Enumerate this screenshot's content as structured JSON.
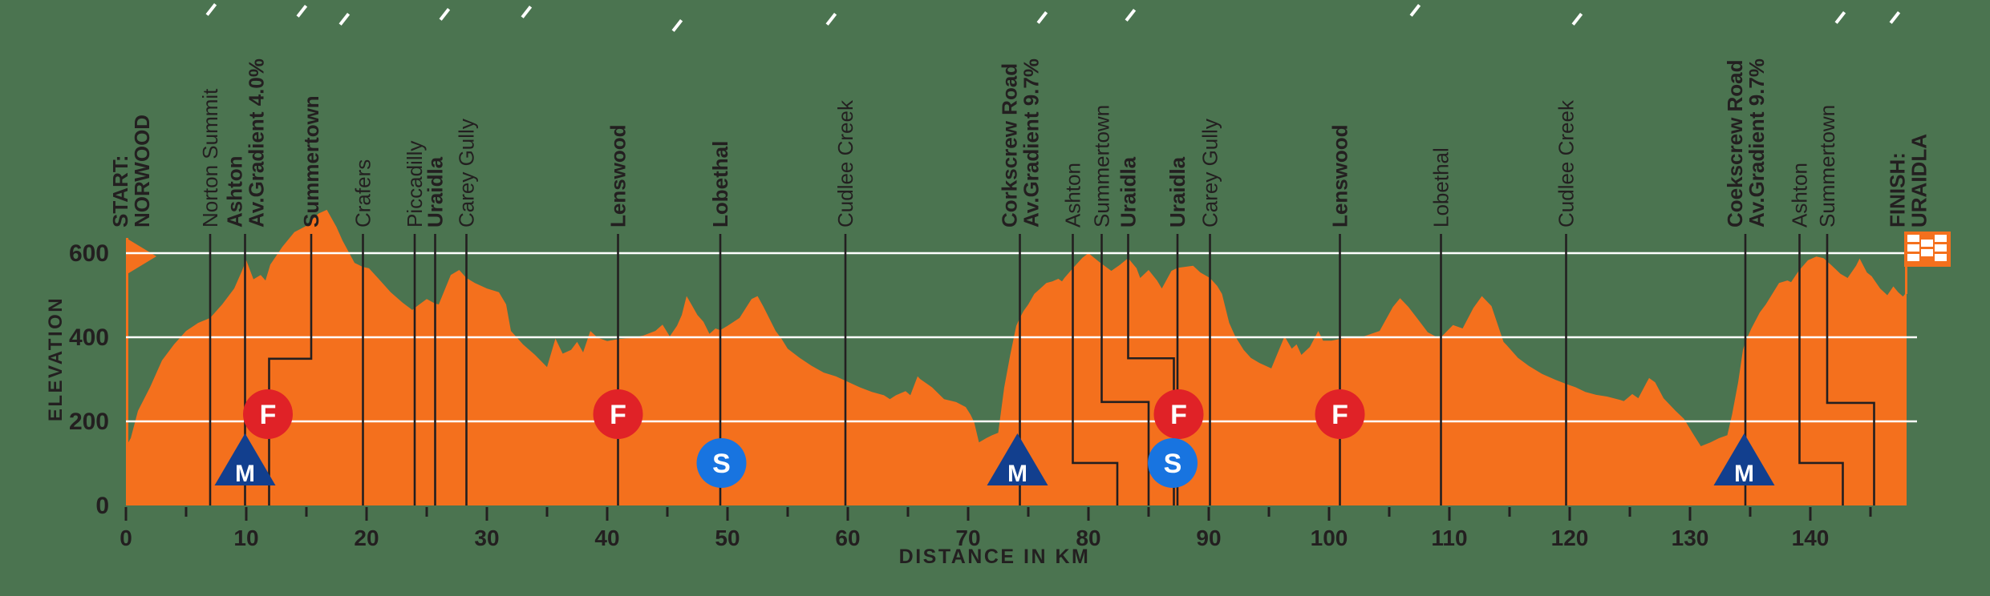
{
  "chart_data": {
    "type": "area",
    "xlabel": "DISTANCE IN KM",
    "ylabel": "ELEVATION",
    "xlim": [
      0,
      148
    ],
    "ylim": [
      0,
      720
    ],
    "x_ticks_major": [
      0,
      10,
      20,
      30,
      40,
      50,
      60,
      70,
      80,
      90,
      100,
      110,
      120,
      130,
      140
    ],
    "x_ticks_minor": [
      5,
      15,
      25,
      35,
      45,
      55,
      65,
      75,
      85,
      95,
      105,
      115,
      125,
      135,
      145
    ],
    "y_ticks": [
      0,
      200,
      400,
      600
    ],
    "grid": "horizontal white lines at 200, 400, 600",
    "legend_position": "none",
    "colors": {
      "profile": "#F4701D",
      "background": "#4B7450",
      "ink": "#231f20",
      "gridline": "#FFFFFF",
      "kom": "#123F8E",
      "feed": "#E02227",
      "sprint": "#1874E0",
      "marker_letter": "#FFFFFF"
    },
    "profile_km_elevation": [
      [
        0,
        140
      ],
      [
        0.4,
        160
      ],
      [
        1,
        225
      ],
      [
        2,
        281
      ],
      [
        3,
        345
      ],
      [
        4,
        383
      ],
      [
        5,
        415
      ],
      [
        6,
        434
      ],
      [
        7,
        446
      ],
      [
        8,
        478
      ],
      [
        9,
        516
      ],
      [
        9.6,
        555
      ],
      [
        10,
        583
      ],
      [
        10.6,
        538
      ],
      [
        11.2,
        548
      ],
      [
        11.6,
        535
      ],
      [
        12,
        573
      ],
      [
        13,
        615
      ],
      [
        14,
        650
      ],
      [
        15,
        665
      ],
      [
        16,
        694
      ],
      [
        16.7,
        703
      ],
      [
        17.5,
        662
      ],
      [
        18,
        630
      ],
      [
        19,
        577
      ],
      [
        19.7,
        567
      ],
      [
        20.2,
        564
      ],
      [
        21,
        539
      ],
      [
        22,
        507
      ],
      [
        23,
        482
      ],
      [
        23.8,
        465
      ],
      [
        24.2,
        474
      ],
      [
        25,
        491
      ],
      [
        25.7,
        480
      ],
      [
        26,
        478
      ],
      [
        27,
        548
      ],
      [
        27.7,
        560
      ],
      [
        28.3,
        541
      ],
      [
        29,
        529
      ],
      [
        30,
        516
      ],
      [
        31,
        507
      ],
      [
        31.6,
        478
      ],
      [
        32,
        415
      ],
      [
        33,
        383
      ],
      [
        34,
        358
      ],
      [
        35,
        329
      ],
      [
        35.7,
        397
      ],
      [
        36.3,
        361
      ],
      [
        37,
        370
      ],
      [
        37.5,
        389
      ],
      [
        38,
        364
      ],
      [
        38.6,
        415
      ],
      [
        39.2,
        399
      ],
      [
        40,
        391
      ],
      [
        41,
        396
      ],
      [
        42,
        398
      ],
      [
        43,
        404
      ],
      [
        44,
        415
      ],
      [
        44.6,
        430
      ],
      [
        45.2,
        402
      ],
      [
        45.8,
        427
      ],
      [
        46.2,
        453
      ],
      [
        46.6,
        498
      ],
      [
        47,
        478
      ],
      [
        47.5,
        453
      ],
      [
        48,
        437
      ],
      [
        48.5,
        408
      ],
      [
        49,
        421
      ],
      [
        49.4,
        417
      ],
      [
        50,
        427
      ],
      [
        51,
        446
      ],
      [
        52,
        491
      ],
      [
        52.5,
        498
      ],
      [
        53,
        472
      ],
      [
        54,
        415
      ],
      [
        54.5,
        396
      ],
      [
        55,
        373
      ],
      [
        56,
        351
      ],
      [
        57,
        332
      ],
      [
        58,
        316
      ],
      [
        59,
        307
      ],
      [
        60,
        294
      ],
      [
        61,
        281
      ],
      [
        62,
        270
      ],
      [
        63,
        262
      ],
      [
        63.5,
        253
      ],
      [
        64,
        262
      ],
      [
        64.8,
        272
      ],
      [
        65.2,
        262
      ],
      [
        65.8,
        307
      ],
      [
        66,
        301
      ],
      [
        67,
        281
      ],
      [
        68,
        253
      ],
      [
        69,
        246
      ],
      [
        69.8,
        234
      ],
      [
        70.2,
        216
      ],
      [
        70.5,
        198
      ],
      [
        70.9,
        150
      ],
      [
        71.5,
        160
      ],
      [
        72,
        167
      ],
      [
        72.5,
        173
      ],
      [
        73,
        281
      ],
      [
        73.5,
        358
      ],
      [
        74,
        427
      ],
      [
        74.3,
        446
      ],
      [
        74.6,
        462
      ],
      [
        75,
        478
      ],
      [
        75.5,
        503
      ],
      [
        76,
        516
      ],
      [
        76.5,
        529
      ],
      [
        77,
        533
      ],
      [
        77.5,
        539
      ],
      [
        77.8,
        533
      ],
      [
        78,
        541
      ],
      [
        78.7,
        564
      ],
      [
        79.5,
        589
      ],
      [
        80,
        600
      ],
      [
        80.9,
        579
      ],
      [
        81.9,
        558
      ],
      [
        82.6,
        572
      ],
      [
        83.3,
        588
      ],
      [
        84,
        564
      ],
      [
        84.3,
        541
      ],
      [
        85,
        560
      ],
      [
        85.7,
        535
      ],
      [
        86.1,
        516
      ],
      [
        86.9,
        558
      ],
      [
        87.4,
        565
      ],
      [
        88.7,
        570
      ],
      [
        89.3,
        554
      ],
      [
        90.1,
        541
      ],
      [
        90.7,
        522
      ],
      [
        91.1,
        503
      ],
      [
        91.7,
        434
      ],
      [
        92.2,
        402
      ],
      [
        92.9,
        370
      ],
      [
        93.5,
        351
      ],
      [
        94.2,
        339
      ],
      [
        95.2,
        326
      ],
      [
        96.3,
        402
      ],
      [
        96.9,
        373
      ],
      [
        97.3,
        383
      ],
      [
        97.7,
        358
      ],
      [
        98.4,
        377
      ],
      [
        99.1,
        415
      ],
      [
        99.5,
        392
      ],
      [
        100.2,
        392
      ],
      [
        100.9,
        396
      ],
      [
        101.5,
        398
      ],
      [
        102.9,
        402
      ],
      [
        103.5,
        408
      ],
      [
        104.2,
        415
      ],
      [
        105.3,
        472
      ],
      [
        105.9,
        493
      ],
      [
        106.6,
        472
      ],
      [
        107.3,
        446
      ],
      [
        108.2,
        412
      ],
      [
        109.1,
        398
      ],
      [
        109.3,
        400
      ],
      [
        110.3,
        429
      ],
      [
        111.1,
        421
      ],
      [
        112,
        470
      ],
      [
        112.7,
        498
      ],
      [
        113.5,
        474
      ],
      [
        114.5,
        389
      ],
      [
        114.8,
        380
      ],
      [
        115.7,
        351
      ],
      [
        116.6,
        332
      ],
      [
        117.7,
        313
      ],
      [
        118.8,
        299
      ],
      [
        119.7,
        289
      ],
      [
        120.5,
        281
      ],
      [
        121.3,
        270
      ],
      [
        122.2,
        263
      ],
      [
        123.1,
        259
      ],
      [
        124.2,
        251
      ],
      [
        124.5,
        248
      ],
      [
        125.2,
        265
      ],
      [
        125.7,
        255
      ],
      [
        126.4,
        293
      ],
      [
        126.6,
        303
      ],
      [
        127.1,
        293
      ],
      [
        127.8,
        255
      ],
      [
        128.8,
        225
      ],
      [
        129.5,
        206
      ],
      [
        130.2,
        173
      ],
      [
        130.9,
        141
      ],
      [
        131.7,
        150
      ],
      [
        132.4,
        160
      ],
      [
        133.1,
        167
      ],
      [
        133.5,
        217
      ],
      [
        134,
        293
      ],
      [
        134.4,
        370
      ],
      [
        134.6,
        389
      ],
      [
        135.1,
        421
      ],
      [
        135.8,
        459
      ],
      [
        136.3,
        478
      ],
      [
        137.4,
        529
      ],
      [
        138.1,
        535
      ],
      [
        138.4,
        531
      ],
      [
        138.8,
        548
      ],
      [
        139.1,
        560
      ],
      [
        139.8,
        583
      ],
      [
        140.5,
        592
      ],
      [
        141.1,
        588
      ],
      [
        141.8,
        570
      ],
      [
        142.5,
        551
      ],
      [
        143.1,
        541
      ],
      [
        143.8,
        570
      ],
      [
        144.1,
        587
      ],
      [
        144.7,
        554
      ],
      [
        145.1,
        545
      ],
      [
        145.8,
        516
      ],
      [
        146.4,
        500
      ],
      [
        146.9,
        521
      ],
      [
        147.3,
        507
      ],
      [
        147.7,
        497
      ],
      [
        148,
        507
      ]
    ],
    "route_labels": [
      {
        "text": [
          "START:",
          "NORWOOD"
        ],
        "km": 0.4,
        "bold": true,
        "line": "none"
      },
      {
        "text": [
          "Norton Summit"
        ],
        "km": 7.0,
        "bold": false,
        "line": "straight"
      },
      {
        "text": [
          "Ashton",
          "Av.Gradient 4.0%"
        ],
        "km": 9.9,
        "bold": true,
        "line": "straight"
      },
      {
        "text": [
          "Summertown"
        ],
        "km": 15.4,
        "bold": true,
        "line": "elbow",
        "elbow": {
          "elev": 349,
          "to_km": 11.9
        }
      },
      {
        "text": [
          "Crafers"
        ],
        "km": 19.7,
        "bold": false,
        "line": "straight"
      },
      {
        "text": [
          "Piccadilly"
        ],
        "km": 24.0,
        "bold": false,
        "line": "straight"
      },
      {
        "text": [
          "Uraidla"
        ],
        "km": 25.7,
        "bold": true,
        "line": "straight"
      },
      {
        "text": [
          "Carey Gully"
        ],
        "km": 28.3,
        "bold": false,
        "line": "straight"
      },
      {
        "text": [
          "Lenswood"
        ],
        "km": 40.9,
        "bold": true,
        "line": "straight"
      },
      {
        "text": [
          "Lobethal"
        ],
        "km": 49.4,
        "bold": true,
        "line": "straight"
      },
      {
        "text": [
          "Cudlee Creek"
        ],
        "km": 59.8,
        "bold": false,
        "line": "straight"
      },
      {
        "text": [
          "Corkscrew Road",
          "Av.Gradient 9.7%"
        ],
        "km": 74.3,
        "bold": true,
        "line": "straight"
      },
      {
        "text": [
          "Ashton"
        ],
        "km": 78.7,
        "bold": false,
        "line": "elbow",
        "elbow": {
          "elev": 101,
          "to_km": 82.4
        }
      },
      {
        "text": [
          "Summertown"
        ],
        "km": 81.1,
        "bold": false,
        "line": "elbow",
        "elbow": {
          "elev": 246,
          "to_km": 85.0
        }
      },
      {
        "text": [
          "Uraidla"
        ],
        "km": 83.3,
        "bold": true,
        "line": "elbow",
        "elbow": {
          "elev": 350,
          "to_km": 87.1
        }
      },
      {
        "text": [
          "Uraidla"
        ],
        "km": 87.4,
        "bold": true,
        "line": "straight"
      },
      {
        "text": [
          "Carey Gully"
        ],
        "km": 90.1,
        "bold": false,
        "line": "straight"
      },
      {
        "text": [
          "Lenswood"
        ],
        "km": 100.9,
        "bold": true,
        "line": "straight"
      },
      {
        "text": [
          "Lobethal"
        ],
        "km": 109.3,
        "bold": false,
        "line": "straight"
      },
      {
        "text": [
          "Cudlee Creek"
        ],
        "km": 119.7,
        "bold": false,
        "line": "straight"
      },
      {
        "text": [
          "Coekscrew Road",
          "Av.Gradient 9.7%"
        ],
        "km": 134.6,
        "bold": true,
        "line": "straight"
      },
      {
        "text": [
          "Ashton"
        ],
        "km": 139.1,
        "bold": false,
        "line": "elbow",
        "elbow": {
          "elev": 101,
          "to_km": 142.7
        }
      },
      {
        "text": [
          "Summertown"
        ],
        "km": 141.4,
        "bold": false,
        "line": "elbow",
        "elbow": {
          "elev": 244,
          "to_km": 145.3
        }
      },
      {
        "text": [
          "FINISH:",
          "URAIDLA"
        ],
        "km": 148.1,
        "bold": true,
        "line": "none"
      }
    ],
    "markers": {
      "kom": {
        "symbol": "M",
        "km": [
          9.9,
          74.1,
          134.5
        ]
      },
      "feed": {
        "symbol": "F",
        "km": [
          11.8,
          40.9,
          87.5,
          100.9
        ]
      },
      "sprint": {
        "symbol": "S",
        "km": [
          49.5,
          87.0
        ]
      }
    },
    "start_pennant_km": 0,
    "finish_flag_km": 148
  }
}
